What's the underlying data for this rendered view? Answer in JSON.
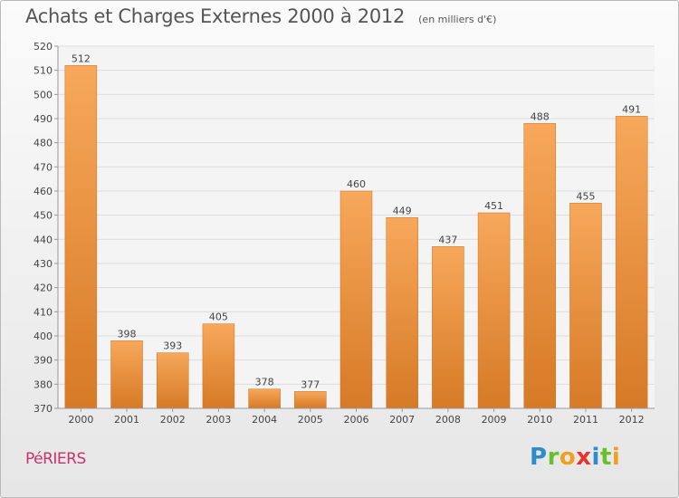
{
  "header": {
    "title": "Achats et Charges Externes 2000 à 2012",
    "subtitle": "(en milliers d'€)"
  },
  "footer": {
    "town": "PéRIERS",
    "brand": {
      "text": "Proxiti",
      "letters": [
        {
          "ch": "P",
          "color": "#2e8bcc"
        },
        {
          "ch": "r",
          "color": "#6abf2f"
        },
        {
          "ch": "o",
          "color": "#f0a020"
        },
        {
          "ch": "x",
          "color": "#e8342a"
        },
        {
          "ch": "i",
          "color": "#2e8bcc"
        },
        {
          "ch": "t",
          "color": "#6abf2f"
        },
        {
          "ch": "i",
          "color": "#f0a020"
        }
      ]
    }
  },
  "chart_data": {
    "type": "bar",
    "title": "Achats et Charges Externes 2000 à 2012",
    "subtitle": "(en milliers d'€)",
    "xlabel": "",
    "ylabel": "",
    "categories": [
      "2000",
      "2001",
      "2002",
      "2003",
      "2004",
      "2005",
      "2006",
      "2007",
      "2008",
      "2009",
      "2010",
      "2011",
      "2012"
    ],
    "values": [
      512,
      398,
      393,
      405,
      378,
      377,
      460,
      449,
      437,
      451,
      488,
      455,
      491
    ],
    "ylim": [
      370,
      520
    ],
    "yticks": [
      370,
      380,
      390,
      400,
      410,
      420,
      430,
      440,
      450,
      460,
      470,
      480,
      490,
      500,
      510,
      520
    ],
    "grid": true,
    "legend": "none",
    "colors": {
      "bar_top": "#f7a85a",
      "bar_bottom": "#d67a26",
      "grid": "#dcdcdc",
      "axis": "#999999",
      "text": "#444444"
    }
  }
}
